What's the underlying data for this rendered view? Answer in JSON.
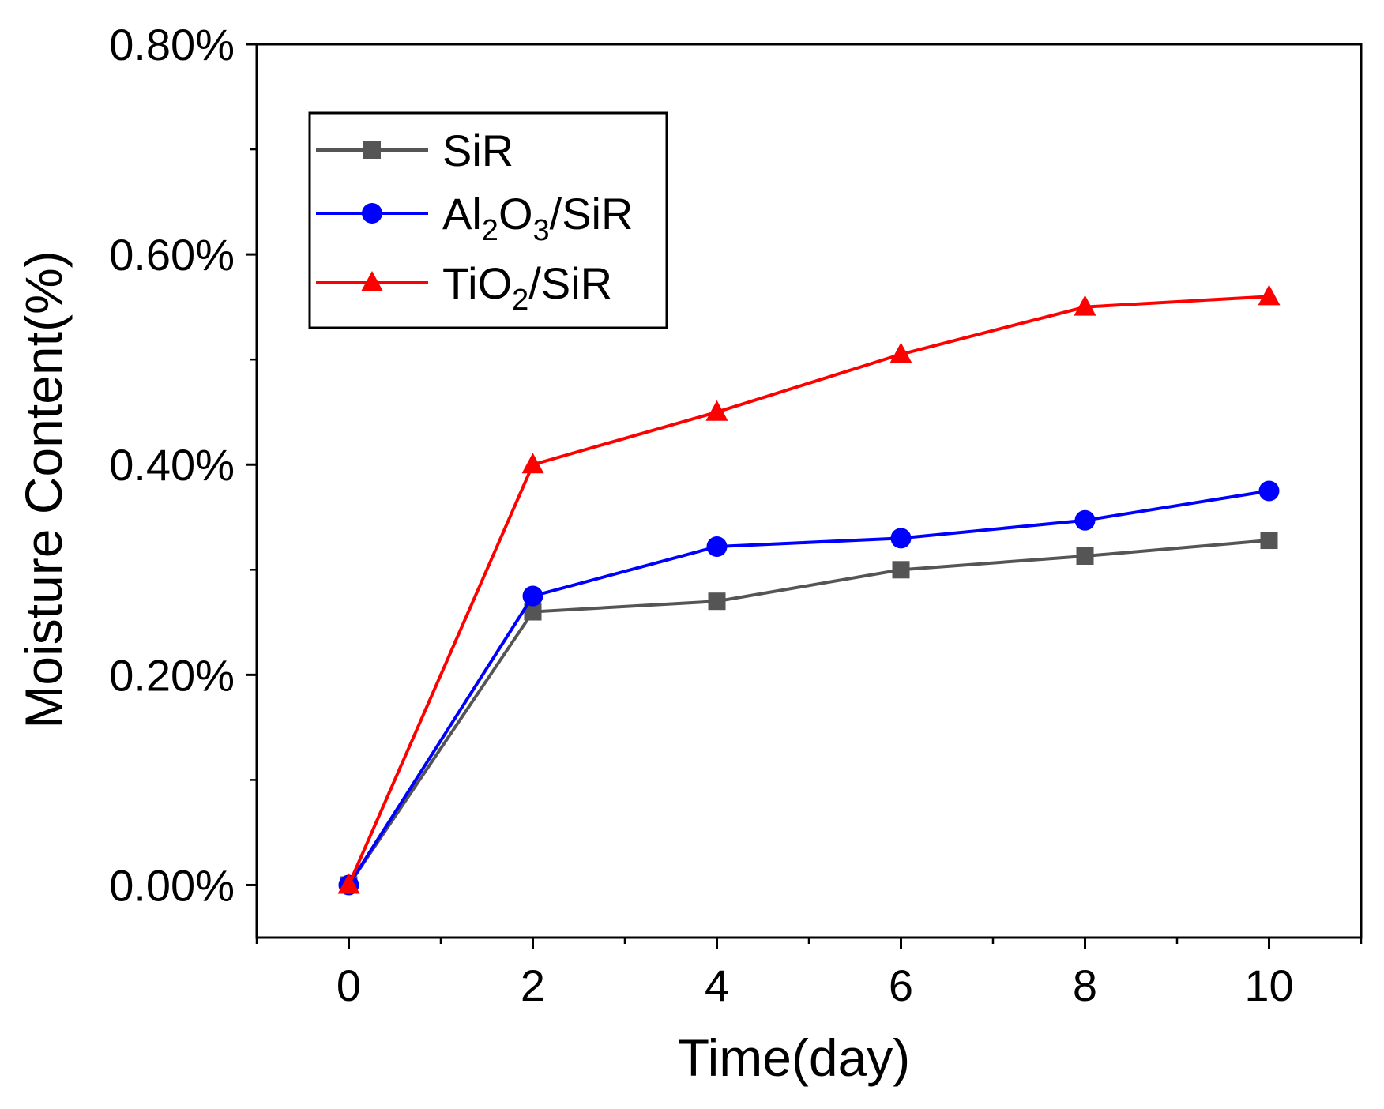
{
  "chart_data": {
    "type": "line",
    "title": "",
    "xlabel": "Time(day)",
    "ylabel": "Moisture Content(%)",
    "xlim": [
      -1,
      11
    ],
    "ylim": [
      -0.0005,
      0.008
    ],
    "x": [
      0,
      2,
      4,
      6,
      8,
      10
    ],
    "xticks": [
      0,
      2,
      4,
      6,
      8,
      10
    ],
    "x_tick_labels": [
      "0",
      "2",
      "4",
      "6",
      "8",
      "10"
    ],
    "yticks": [
      0,
      0.002,
      0.004,
      0.006,
      0.008
    ],
    "y_tick_labels": [
      "0.00%",
      "0.20%",
      "0.40%",
      "0.60%",
      "0.80%"
    ],
    "grid": false,
    "legend_position": "top-left",
    "series": [
      {
        "name": "SiR",
        "legend_parts": [
          {
            "t": "SiR",
            "sub": false
          }
        ],
        "color": "#555555",
        "marker": "square",
        "values": [
          0,
          0.0026,
          0.0027,
          0.003,
          0.00313,
          0.00328
        ]
      },
      {
        "name": "Al2O3/SiR",
        "legend_parts": [
          {
            "t": "Al",
            "sub": false
          },
          {
            "t": "2",
            "sub": true
          },
          {
            "t": "O",
            "sub": false
          },
          {
            "t": "3",
            "sub": true
          },
          {
            "t": "/SiR",
            "sub": false
          }
        ],
        "color": "#0000ff",
        "marker": "circle",
        "values": [
          0,
          0.00275,
          0.00322,
          0.0033,
          0.00347,
          0.00375
        ]
      },
      {
        "name": "TiO2/SiR",
        "legend_parts": [
          {
            "t": "TiO",
            "sub": false
          },
          {
            "t": "2",
            "sub": true
          },
          {
            "t": "/SiR",
            "sub": false
          }
        ],
        "color": "#ff0000",
        "marker": "triangle",
        "values": [
          0,
          0.004,
          0.0045,
          0.00505,
          0.0055,
          0.0056
        ]
      }
    ]
  }
}
